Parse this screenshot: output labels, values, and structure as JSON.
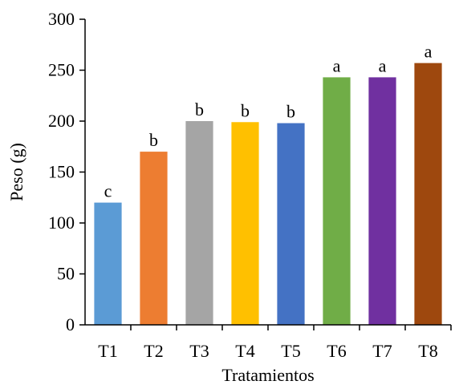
{
  "chart_data": {
    "type": "bar",
    "title": "",
    "xlabel": "Tratamientos",
    "ylabel": "Peso (g)",
    "ylim": [
      0,
      300
    ],
    "yticks": [
      0,
      50,
      100,
      150,
      200,
      250,
      300
    ],
    "grid": false,
    "legend": "none",
    "categories": [
      "T1",
      "T2",
      "T3",
      "T4",
      "T5",
      "T6",
      "T7",
      "T8"
    ],
    "values": [
      120,
      170,
      200,
      199,
      198,
      243,
      243,
      257
    ],
    "labels": [
      "c",
      "b",
      "b",
      "b",
      "b",
      "a",
      "a",
      "a"
    ],
    "colors": [
      "#5B9BD5",
      "#ED7D31",
      "#A5A5A5",
      "#FFC000",
      "#4472C4",
      "#70AD47",
      "#7030A0",
      "#9E480E"
    ]
  }
}
